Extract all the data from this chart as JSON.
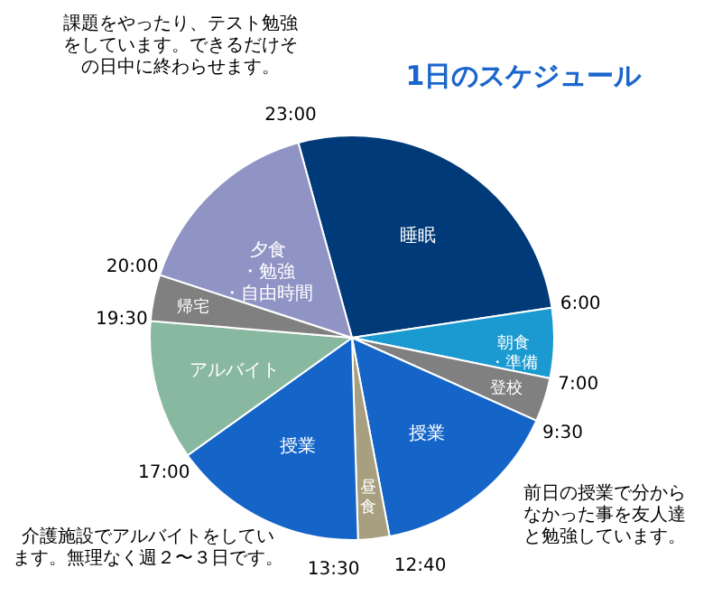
{
  "chart_data": {
    "type": "pie",
    "title": "1日のスケジュール",
    "categories": [
      "睡眠",
      "朝食・準備",
      "登校",
      "授業",
      "昼食",
      "授業",
      "アルバイト",
      "帰宅",
      "夕食・勉強・自由時間"
    ],
    "values": [
      26.9,
      5.6,
      3.5,
      15.3,
      2.5,
      15.6,
      11.2,
      3.7,
      15.7
    ],
    "colors": [
      "#003a78",
      "#1a9ad0",
      "#808080",
      "#1565c8",
      "#a89f80",
      "#1565c8",
      "#88b8a0",
      "#808080",
      "#9094c4"
    ],
    "annotations": [
      "23:00",
      "6:00",
      "7:00",
      "9:30",
      "12:40",
      "13:30",
      "17:00",
      "19:30",
      "20:00",
      "課題をやったり、テスト勉強をしています。できるだけその日中に終わらせます。",
      "介護施設でアルバイトをしています。無理なく週２〜３日です。",
      "前日の授業で分からなかった事を友人達と勉強しています。"
    ]
  }
}
